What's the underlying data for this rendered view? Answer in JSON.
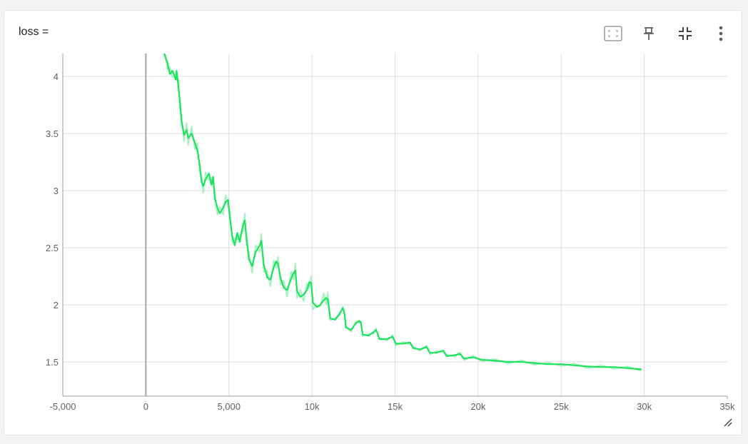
{
  "card": {
    "title": "loss =",
    "toolbar": [
      {
        "name": "fit-domain-icon"
      },
      {
        "name": "pin-icon"
      },
      {
        "name": "collapse-icon"
      },
      {
        "name": "more-vert-icon"
      }
    ]
  },
  "colors": {
    "line": "#1de35f",
    "line_raw": "#a7f2c0",
    "grid": "#dcdcdc",
    "zero_axis": "#a6a6a6"
  },
  "chart_data": {
    "type": "line",
    "title": "loss =",
    "xlabel": "",
    "ylabel": "",
    "xlim": [
      -5000,
      35000
    ],
    "ylim": [
      1.2,
      4.2
    ],
    "grid": true,
    "x_ticks": [
      {
        "value": -5000,
        "label": "-5,000",
        "faded": true
      },
      {
        "value": 0,
        "label": "0"
      },
      {
        "value": 5000,
        "label": "5,000"
      },
      {
        "value": 10000,
        "label": "10k"
      },
      {
        "value": 15000,
        "label": "15k"
      },
      {
        "value": 20000,
        "label": "20k"
      },
      {
        "value": 25000,
        "label": "25k"
      },
      {
        "value": 30000,
        "label": "30k"
      },
      {
        "value": 35000,
        "label": "35k",
        "faded": true
      }
    ],
    "y_ticks": [
      {
        "value": 1.5,
        "label": "1.5"
      },
      {
        "value": 2,
        "label": "2"
      },
      {
        "value": 2.5,
        "label": "2.5"
      },
      {
        "value": 3,
        "label": "3"
      },
      {
        "value": 3.5,
        "label": "3.5"
      },
      {
        "value": 4,
        "label": "4"
      }
    ],
    "series": [
      {
        "smoothed": true,
        "points": [
          [
            1100,
            4.2
          ],
          [
            1300,
            4.12
          ],
          [
            1450,
            4.02
          ],
          [
            1600,
            4.05
          ],
          [
            1800,
            3.97
          ],
          [
            1850,
            4.05
          ],
          [
            1950,
            3.92
          ],
          [
            2050,
            3.78
          ],
          [
            2150,
            3.6
          ],
          [
            2300,
            3.49
          ],
          [
            2450,
            3.53
          ],
          [
            2550,
            3.46
          ],
          [
            2750,
            3.5
          ],
          [
            2950,
            3.42
          ],
          [
            3100,
            3.35
          ],
          [
            3250,
            3.22
          ],
          [
            3350,
            3.08
          ],
          [
            3450,
            3.04
          ],
          [
            3600,
            3.1
          ],
          [
            3800,
            3.15
          ],
          [
            3950,
            3.05
          ],
          [
            4050,
            3.12
          ],
          [
            4150,
            2.93
          ],
          [
            4300,
            2.85
          ],
          [
            4450,
            2.8
          ],
          [
            4650,
            2.85
          ],
          [
            4800,
            2.9
          ],
          [
            4950,
            2.92
          ],
          [
            5050,
            2.77
          ],
          [
            5200,
            2.6
          ],
          [
            5350,
            2.52
          ],
          [
            5500,
            2.63
          ],
          [
            5650,
            2.55
          ],
          [
            5850,
            2.7
          ],
          [
            5950,
            2.74
          ],
          [
            6050,
            2.6
          ],
          [
            6200,
            2.4
          ],
          [
            6400,
            2.34
          ],
          [
            6600,
            2.46
          ],
          [
            6850,
            2.52
          ],
          [
            6950,
            2.56
          ],
          [
            7100,
            2.35
          ],
          [
            7300,
            2.24
          ],
          [
            7500,
            2.22
          ],
          [
            7700,
            2.33
          ],
          [
            7850,
            2.38
          ],
          [
            7950,
            2.36
          ],
          [
            8100,
            2.24
          ],
          [
            8300,
            2.15
          ],
          [
            8500,
            2.13
          ],
          [
            8750,
            2.23
          ],
          [
            8900,
            2.28
          ],
          [
            9000,
            2.3
          ],
          [
            9100,
            2.12
          ],
          [
            9300,
            2.07
          ],
          [
            9500,
            2.09
          ],
          [
            9700,
            2.13
          ],
          [
            9850,
            2.2
          ],
          [
            9950,
            2.19
          ],
          [
            10050,
            2.02
          ],
          [
            10300,
            1.98
          ],
          [
            10500,
            2.0
          ],
          [
            10700,
            2.04
          ],
          [
            10850,
            2.06
          ],
          [
            10950,
            2.05
          ],
          [
            11100,
            1.88
          ],
          [
            11400,
            1.87
          ],
          [
            11650,
            1.92
          ],
          [
            11850,
            1.97
          ],
          [
            11950,
            1.93
          ],
          [
            12050,
            1.8
          ],
          [
            12350,
            1.78
          ],
          [
            12650,
            1.84
          ],
          [
            12850,
            1.86
          ],
          [
            12950,
            1.84
          ],
          [
            13050,
            1.74
          ],
          [
            13400,
            1.73
          ],
          [
            13700,
            1.76
          ],
          [
            13850,
            1.78
          ],
          [
            13950,
            1.75
          ],
          [
            14050,
            1.7
          ],
          [
            14500,
            1.7
          ],
          [
            14850,
            1.72
          ],
          [
            15050,
            1.66
          ],
          [
            15500,
            1.66
          ],
          [
            15900,
            1.67
          ],
          [
            16100,
            1.62
          ],
          [
            16500,
            1.61
          ],
          [
            16900,
            1.63
          ],
          [
            17100,
            1.58
          ],
          [
            17500,
            1.58
          ],
          [
            17900,
            1.6
          ],
          [
            18100,
            1.55
          ],
          [
            18600,
            1.56
          ],
          [
            18900,
            1.57
          ],
          [
            19150,
            1.53
          ],
          [
            19700,
            1.54
          ],
          [
            20200,
            1.52
          ],
          [
            21000,
            1.51
          ],
          [
            21800,
            1.5
          ],
          [
            22600,
            1.5
          ],
          [
            23400,
            1.49
          ],
          [
            24200,
            1.48
          ],
          [
            25000,
            1.48
          ],
          [
            25800,
            1.47
          ],
          [
            26600,
            1.46
          ],
          [
            27400,
            1.455
          ],
          [
            28200,
            1.455
          ],
          [
            29000,
            1.445
          ],
          [
            29800,
            1.435
          ]
        ]
      }
    ]
  }
}
